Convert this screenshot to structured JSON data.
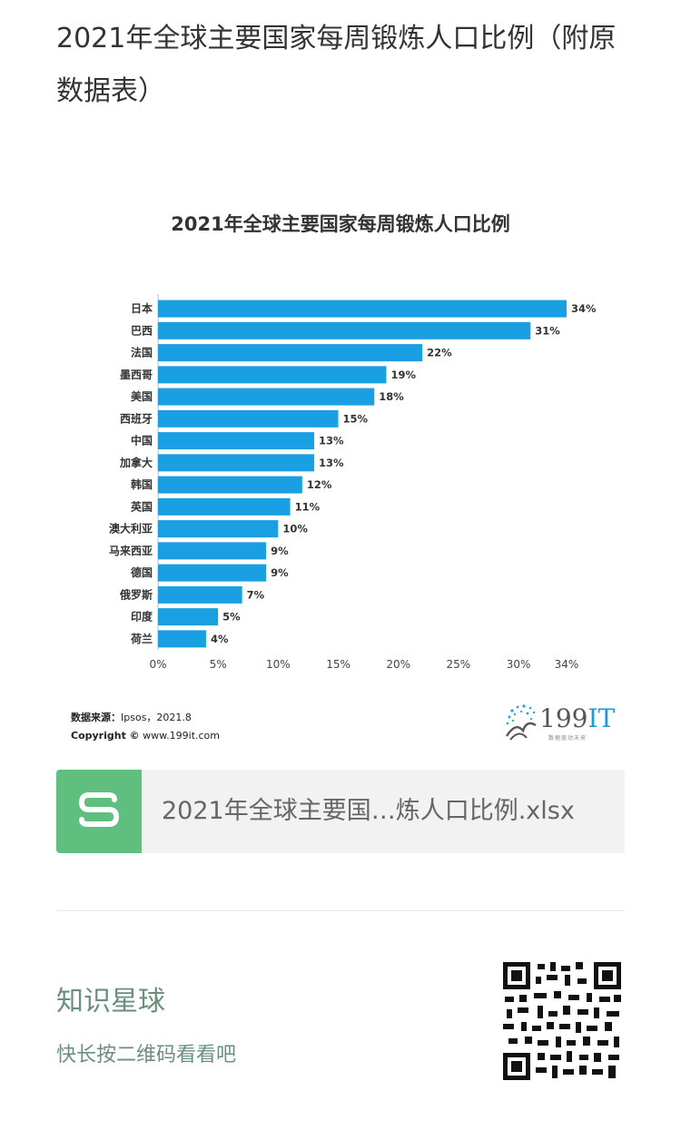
{
  "post": {
    "title": "2021年全球主要国家每周锻炼人口比例（附原数据表）"
  },
  "chart_data": {
    "type": "bar",
    "orientation": "horizontal",
    "title": "2021年全球主要国家每周锻炼人口比例",
    "categories": [
      "日本",
      "巴西",
      "法国",
      "墨西哥",
      "美国",
      "西班牙",
      "中国",
      "加拿大",
      "韩国",
      "英国",
      "澳大利亚",
      "马来西亚",
      "德国",
      "俄罗斯",
      "印度",
      "荷兰"
    ],
    "values": [
      34,
      31,
      22,
      19,
      18,
      15,
      13,
      13,
      12,
      11,
      10,
      9,
      9,
      7,
      5,
      4
    ],
    "value_labels": [
      "34%",
      "31%",
      "22%",
      "19%",
      "18%",
      "15%",
      "13%",
      "13%",
      "12%",
      "11%",
      "10%",
      "9%",
      "9%",
      "7%",
      "5%",
      "4%"
    ],
    "x_ticks": [
      0,
      5,
      10,
      15,
      20,
      25,
      30,
      34
    ],
    "x_tick_labels": [
      "0%",
      "5%",
      "10%",
      "15%",
      "20%",
      "25%",
      "30%",
      "34%"
    ],
    "xlim": [
      0,
      34
    ],
    "bar_color": "#1a9fe3",
    "grid": false,
    "source_label": "数据来源：",
    "source_value": "Ipsos，2021.8",
    "copyright_label": "Copyright ©",
    "copyright_value": "www.199it.com"
  },
  "brand": {
    "number": "199",
    "suffix": "IT",
    "tagline": "数据驱动未来",
    "accent": "#1f9ad6"
  },
  "attachment": {
    "icon": "spreadsheet-icon",
    "filename": "2021年全球主要国…炼人口比例.xlsx",
    "icon_color": "#5fbf7f"
  },
  "promo": {
    "title": "知识星球",
    "subtitle": "快长按二维码看看吧",
    "color": "#6a8f7c"
  }
}
